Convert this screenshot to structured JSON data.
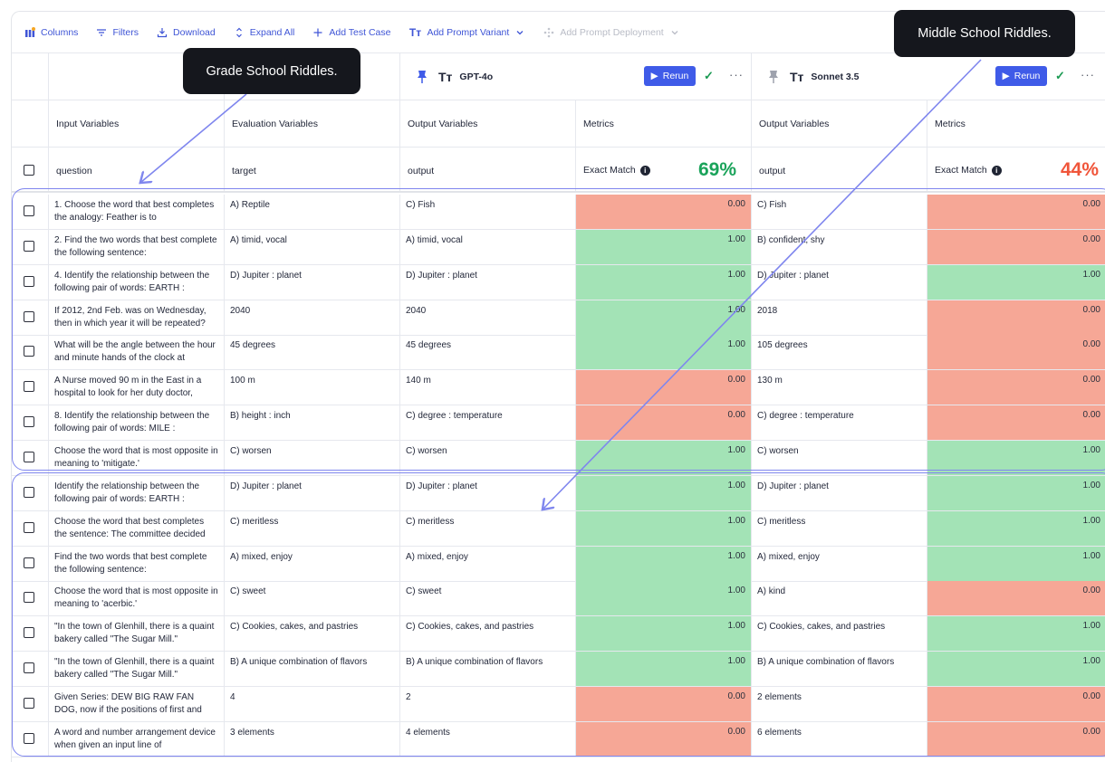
{
  "toolbar": {
    "columns": "Columns",
    "filters": "Filters",
    "download": "Download",
    "expand_all": "Expand All",
    "add_test_case": "Add Test Case",
    "add_prompt_variant": "Add Prompt Variant",
    "add_prompt_deployment": "Add Prompt Deployment"
  },
  "models": [
    {
      "name": "GPT-4o",
      "rerun": "Rerun",
      "score": "69%",
      "score_color": "#1aa35a"
    },
    {
      "name": "Sonnet 3.5",
      "rerun": "Rerun",
      "score": "44%",
      "score_color": "#f0553a"
    }
  ],
  "group_headers": {
    "input": "Input Variables",
    "evaluation": "Evaluation Variables",
    "output": "Output Variables",
    "metrics": "Metrics"
  },
  "column_keys": {
    "question": "question",
    "target": "target",
    "output": "output",
    "exact_match": "Exact Match"
  },
  "tooltips": {
    "grade": "Grade School Riddles.",
    "middle": "Middle School Riddles."
  },
  "colors": {
    "pass": "#a3e3b6",
    "fail": "#f6a796",
    "accent": "#3f5be8",
    "outline": "#7f86ee"
  },
  "rows": [
    {
      "question": "1. Choose the word that best completes the analogy: Feather is to",
      "target": "A) Reptile",
      "out1": "C) Fish",
      "m1": "0.00",
      "out2": "C) Fish",
      "m2": "0.00"
    },
    {
      "question": "2. Find the two words that best complete the following sentence:",
      "target": "A) timid, vocal",
      "out1": "A) timid, vocal",
      "m1": "1.00",
      "out2": "B) confident, shy",
      "m2": "0.00"
    },
    {
      "question": "4. Identify the relationship between the following pair of words: EARTH :",
      "target": "D) Jupiter : planet",
      "out1": "D) Jupiter : planet",
      "m1": "1.00",
      "out2": "D) Jupiter : planet",
      "m2": "1.00"
    },
    {
      "question": "If 2012, 2nd Feb. was on Wednesday, then in which year it will be repeated?",
      "target": "2040",
      "out1": "2040",
      "m1": "1.00",
      "out2": "2018",
      "m2": "0.00"
    },
    {
      "question": "What will be the angle between the hour and minute hands of the clock at",
      "target": "45 degrees",
      "out1": "45 degrees",
      "m1": "1.00",
      "out2": "105 degrees",
      "m2": "0.00"
    },
    {
      "question": "A Nurse moved 90 m in the East in a hospital to look for her duty doctor,",
      "target": "100 m",
      "out1": "140 m",
      "m1": "0.00",
      "out2": "130 m",
      "m2": "0.00"
    },
    {
      "question": "8. Identify the relationship between the following pair of words: MILE :",
      "target": "B) height : inch",
      "out1": "C) degree : temperature",
      "m1": "0.00",
      "out2": "C) degree : temperature",
      "m2": "0.00"
    },
    {
      "question": "Choose the word that is most opposite in meaning to 'mitigate.'",
      "target": "C) worsen",
      "out1": "C) worsen",
      "m1": "1.00",
      "out2": "C) worsen",
      "m2": "1.00"
    },
    {
      "question": "Identify the relationship between the following pair of words: EARTH :",
      "target": "D) Jupiter : planet",
      "out1": "D) Jupiter : planet",
      "m1": "1.00",
      "out2": "D) Jupiter : planet",
      "m2": "1.00"
    },
    {
      "question": "Choose the word that best completes the sentence: The committee decided",
      "target": "C) meritless",
      "out1": "C) meritless",
      "m1": "1.00",
      "out2": "C) meritless",
      "m2": "1.00"
    },
    {
      "question": "Find the two words that best complete the following sentence:",
      "target": "A) mixed, enjoy",
      "out1": "A) mixed, enjoy",
      "m1": "1.00",
      "out2": "A) mixed, enjoy",
      "m2": "1.00"
    },
    {
      "question": "Choose the word that is most opposite in meaning to 'acerbic.'",
      "target": "C) sweet",
      "out1": "C) sweet",
      "m1": "1.00",
      "out2": "A) kind",
      "m2": "0.00"
    },
    {
      "question": "\"In the town of Glenhill, there is a quaint bakery called \"The Sugar Mill.\"",
      "target": "C) Cookies, cakes, and pastries",
      "out1": "C) Cookies, cakes, and pastries",
      "m1": "1.00",
      "out2": "C) Cookies, cakes, and pastries",
      "m2": "1.00"
    },
    {
      "question": "\"In the town of Glenhill, there is a quaint bakery called \"The Sugar Mill.\"",
      "target": "B) A unique combination of flavors",
      "out1": "B) A unique combination of flavors",
      "m1": "1.00",
      "out2": "B) A unique combination of flavors",
      "m2": "1.00"
    },
    {
      "question": "Given Series: DEW BIG RAW FAN DOG, now if the positions of first and last",
      "target": "4",
      "out1": "2",
      "m1": "0.00",
      "out2": "2 elements",
      "m2": "0.00"
    },
    {
      "question": "A word and number arrangement device when given an input line of",
      "target": "3 elements",
      "out1": "4 elements",
      "m1": "0.00",
      "out2": "6 elements",
      "m2": "0.00"
    }
  ]
}
